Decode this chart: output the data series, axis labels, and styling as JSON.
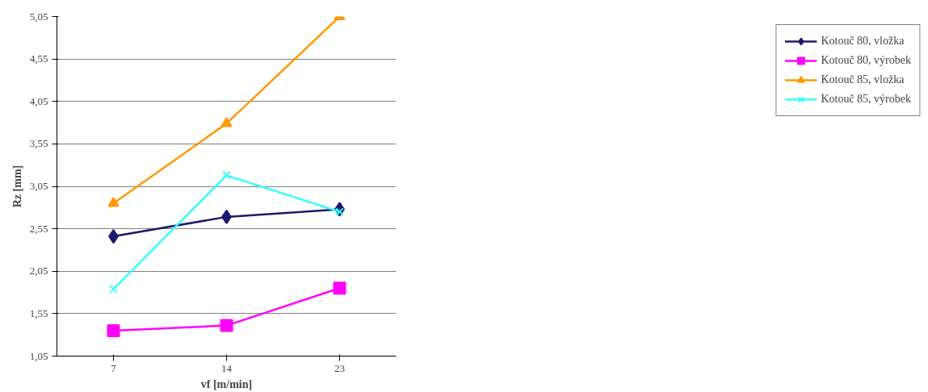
{
  "chart_data": {
    "type": "line",
    "xlabel": "vf [m/min]",
    "ylabel": "Rz [mm]",
    "categories": [
      "7",
      "14",
      "23"
    ],
    "ylim": [
      1.05,
      5.05
    ],
    "yticks": [
      {
        "value": 1.05,
        "label": "1,05"
      },
      {
        "value": 1.55,
        "label": "1,55"
      },
      {
        "value": 2.05,
        "label": "2,05"
      },
      {
        "value": 2.55,
        "label": "2,55"
      },
      {
        "value": 3.05,
        "label": "3,05"
      },
      {
        "value": 3.55,
        "label": "3,55"
      },
      {
        "value": 4.05,
        "label": "4,05"
      },
      {
        "value": 4.55,
        "label": "4,55"
      },
      {
        "value": 5.05,
        "label": "5,05"
      }
    ],
    "grid": "y",
    "legend": "right",
    "series": [
      {
        "name": "Kotouč 80, vložka",
        "color": "#1a1a6e",
        "marker": "diamond",
        "values": [
          2.46,
          2.69,
          2.78
        ]
      },
      {
        "name": "Kotouč 80, výrobek",
        "color": "#ff00ff",
        "marker": "square",
        "values": [
          1.35,
          1.41,
          1.85
        ]
      },
      {
        "name": "Kotouč 85, vložka",
        "color": "#ff9900",
        "marker": "triangle",
        "values": [
          2.85,
          3.79,
          5.05
        ]
      },
      {
        "name": "Kotouč 85, výrobek",
        "color": "#33ffff",
        "marker": "cross",
        "values": [
          1.84,
          3.18,
          2.75
        ]
      }
    ]
  }
}
